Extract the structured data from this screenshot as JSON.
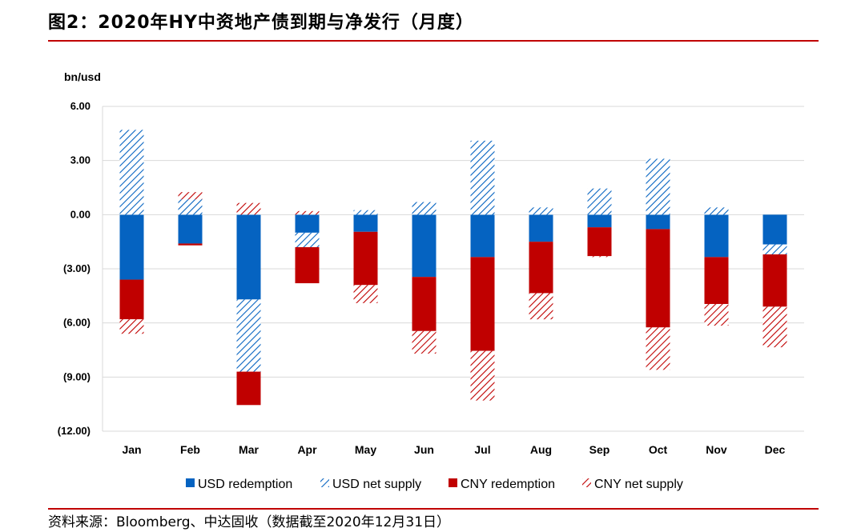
{
  "title": "图2：2020年HY中资地产债到期与净发行（月度）",
  "source": "资料来源：Bloomberg、中达固收（数据截至2020年12月31日）",
  "colors": {
    "usd": "#0563c1",
    "cny": "#c00000",
    "rule": "#c00000",
    "grid": "#d9d9d9"
  },
  "chart_data": {
    "type": "bar",
    "stacked": true,
    "unit_label": "bn/usd",
    "ylim": [
      -12,
      6
    ],
    "yticks": [
      6,
      3,
      0,
      -3,
      -6,
      -9,
      -12
    ],
    "ytick_labels": [
      "6.00",
      "3.00",
      "0.00",
      "(3.00)",
      "(6.00)",
      "(9.00)",
      "(12.00)"
    ],
    "grid": true,
    "legend_position": "bottom",
    "categories": [
      "Jan",
      "Feb",
      "Mar",
      "Apr",
      "May",
      "Jun",
      "Jul",
      "Aug",
      "Sep",
      "Oct",
      "Nov",
      "Dec"
    ],
    "series": [
      {
        "name": "USD redemption",
        "style": "solid",
        "color": "usd",
        "values": [
          -3.6,
          -1.6,
          -4.7,
          -1.0,
          -0.95,
          -3.45,
          -2.35,
          -1.5,
          -0.7,
          -0.8,
          -2.35,
          -1.65
        ]
      },
      {
        "name": "USD net supply",
        "style": "hatched",
        "color": "usd",
        "values": [
          4.7,
          0.85,
          -4.0,
          -0.8,
          0.25,
          0.7,
          4.1,
          0.4,
          1.45,
          3.1,
          0.4,
          -0.55
        ]
      },
      {
        "name": "CNY redemption",
        "style": "solid",
        "color": "cny",
        "values": [
          -2.2,
          -0.1,
          -1.85,
          -2.0,
          -2.95,
          -3.0,
          -5.2,
          -2.85,
          -1.6,
          -5.45,
          -2.6,
          -2.9
        ]
      },
      {
        "name": "CNY net supply",
        "style": "hatched",
        "color": "cny",
        "values": [
          -0.8,
          0.4,
          0.65,
          0.2,
          -1.0,
          -1.25,
          -2.75,
          -1.45,
          -0.05,
          -2.35,
          -1.2,
          -2.25
        ]
      }
    ]
  }
}
